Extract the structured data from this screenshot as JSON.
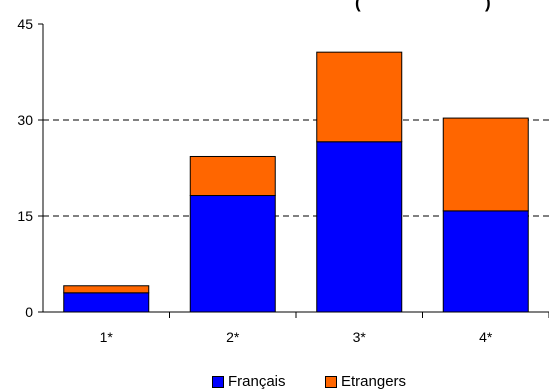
{
  "chart_data": {
    "type": "bar",
    "stacked": true,
    "title_fragment": "(",
    "title_fragment_2": ")",
    "categories": [
      "1*",
      "2*",
      "3*",
      "4*"
    ],
    "series": [
      {
        "name": "Français",
        "color": "#0000FF",
        "values": [
          3,
          18.2,
          26.6,
          15.8
        ]
      },
      {
        "name": "Etrangers",
        "color": "#FF6600",
        "values": [
          1.1,
          6.1,
          14,
          14.5
        ]
      }
    ],
    "yticks": [
      0,
      15,
      30,
      45
    ],
    "ylim": [
      0,
      45
    ],
    "grid": "dashed horizontal at 15 and 30",
    "legend_position": "bottom"
  }
}
